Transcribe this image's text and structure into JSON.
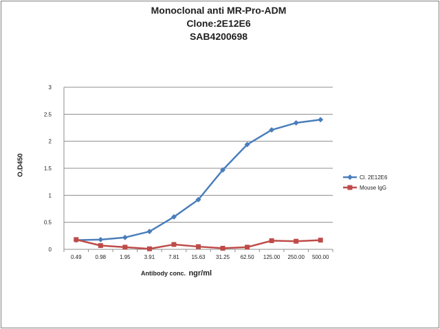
{
  "chart_data": {
    "type": "line",
    "title": [
      "Monoclonal anti MR-Pro-ADM",
      "Clone:2E12E6",
      "SAB4200698"
    ],
    "xlabel": "Antibody conc.",
    "xlabel_unit": "ngr/ml",
    "ylabel": "O.D450",
    "categories": [
      "0.49",
      "0.98",
      "1.95",
      "3.91",
      "7.81",
      "15.63",
      "31.25",
      "62.50",
      "125.00",
      "250.00",
      "500.00"
    ],
    "ylim": [
      0,
      3
    ],
    "yticks": [
      "0",
      "0.5",
      "1",
      "1.5",
      "2",
      "2.5",
      "3"
    ],
    "grid": true,
    "legend_position": "right",
    "series": [
      {
        "name": "Cl. 2E12E6",
        "color": "#4a7ebb",
        "marker": "diamond",
        "values": [
          0.17,
          0.18,
          0.22,
          0.33,
          0.6,
          0.92,
          1.47,
          1.94,
          2.21,
          2.34,
          2.4
        ]
      },
      {
        "name": "Mouse IgG",
        "color": "#be4b48",
        "marker": "square",
        "values": [
          0.18,
          0.07,
          0.04,
          0.01,
          0.09,
          0.05,
          0.02,
          0.04,
          0.16,
          0.15,
          0.17
        ]
      }
    ]
  }
}
